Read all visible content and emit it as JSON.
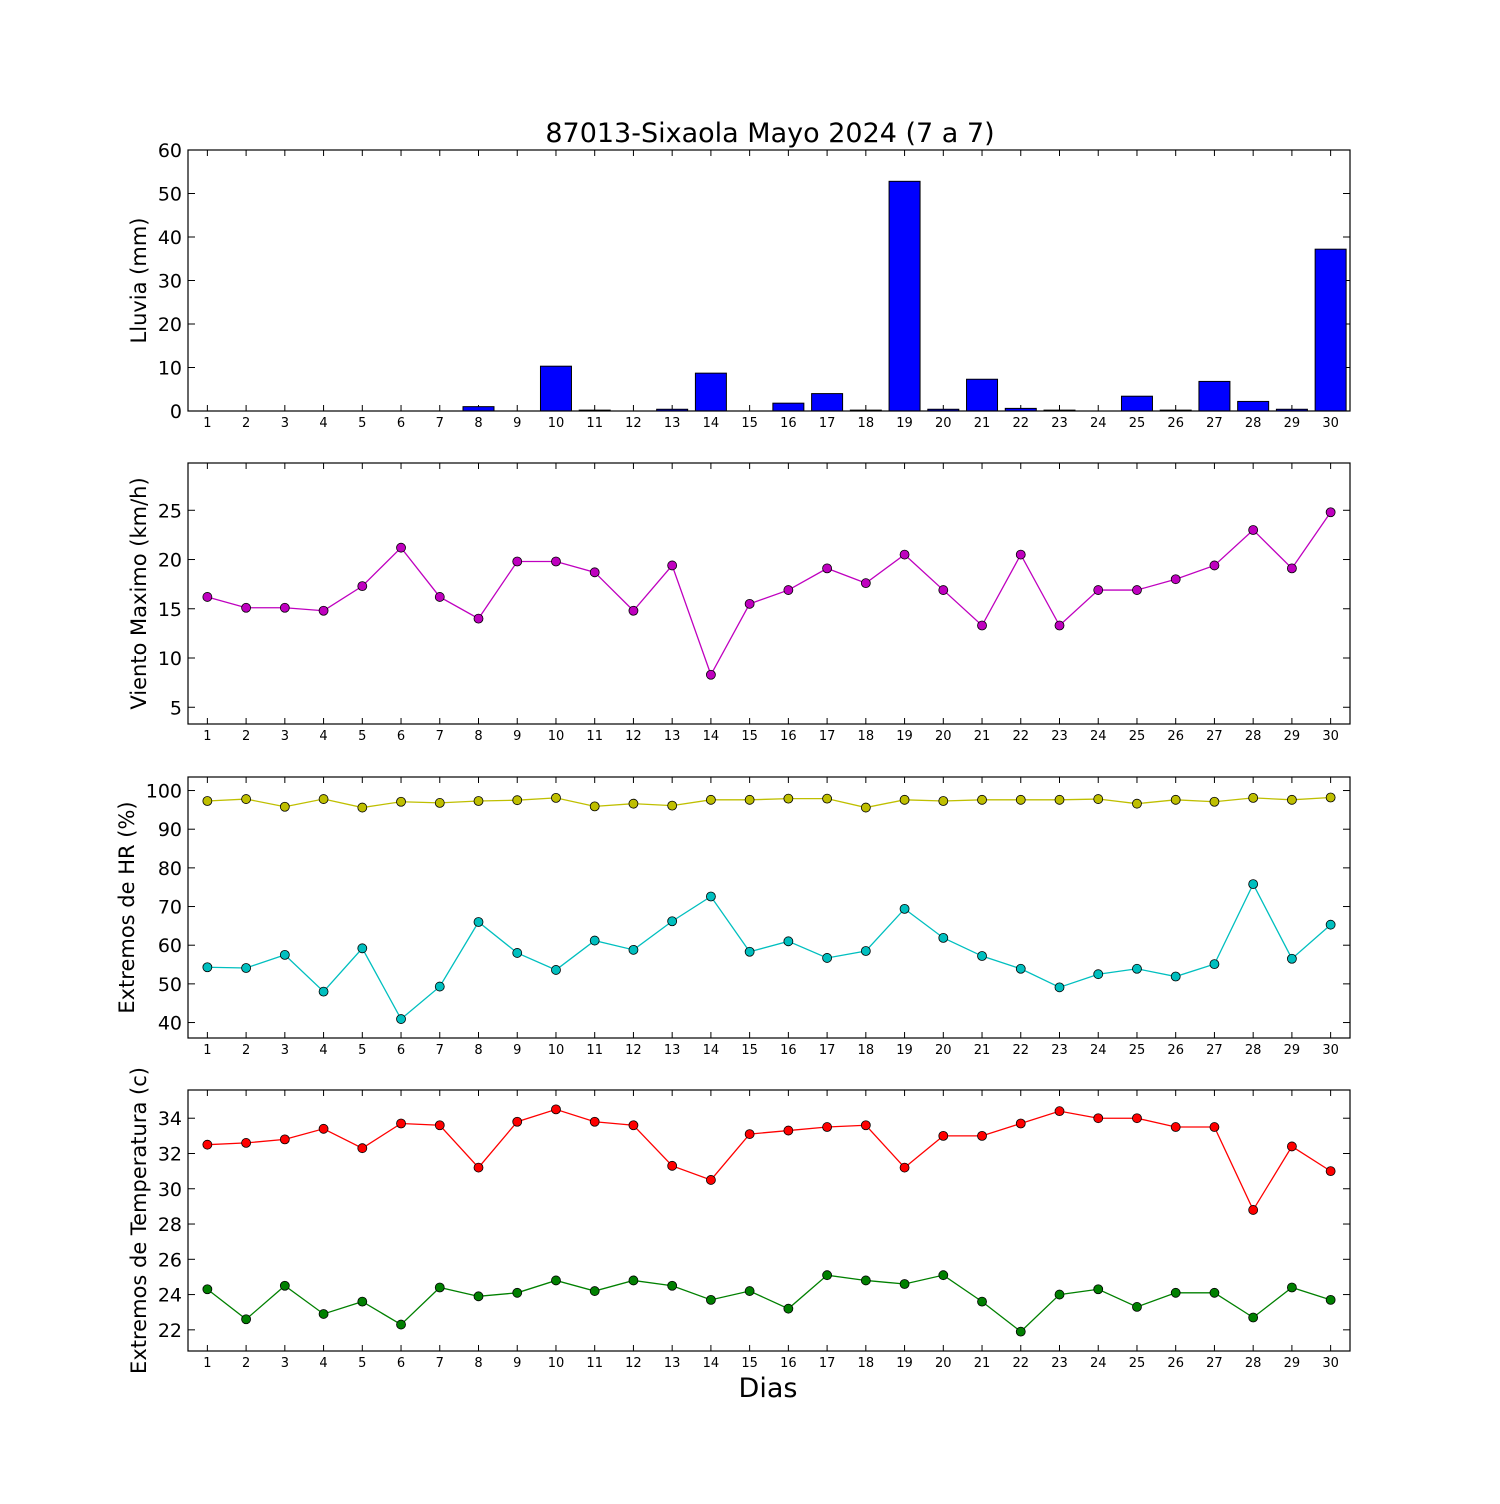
{
  "title": "87013-Sixaola Mayo 2024  (7 a 7)",
  "xlabel": "Dias",
  "chart_data": [
    {
      "type": "bar",
      "id": "lluvia",
      "ylabel": "Lluvia (mm)",
      "ylim": [
        0,
        60
      ],
      "yticks": [
        0,
        10,
        20,
        30,
        40,
        50,
        60
      ],
      "x": [
        1,
        2,
        3,
        4,
        5,
        6,
        7,
        8,
        9,
        10,
        11,
        12,
        13,
        14,
        15,
        16,
        17,
        18,
        19,
        20,
        21,
        22,
        23,
        24,
        25,
        26,
        27,
        28,
        29,
        30
      ],
      "series": [
        {
          "color": "#0000ff",
          "values": [
            0,
            0,
            0,
            0,
            0,
            0,
            0,
            1.0,
            0,
            10.3,
            0.2,
            0,
            0.4,
            8.7,
            0,
            1.8,
            4.0,
            0.2,
            52.8,
            0.4,
            7.3,
            0.6,
            0.2,
            0,
            3.4,
            0.2,
            6.8,
            2.2,
            0.4,
            37.2
          ]
        }
      ]
    },
    {
      "type": "line",
      "id": "viento",
      "ylabel": "Viento Maximo (km/h)",
      "ylim": [
        3.3,
        29.8
      ],
      "yticks": [
        5,
        10,
        15,
        20,
        25
      ],
      "x": [
        1,
        2,
        3,
        4,
        5,
        6,
        7,
        8,
        9,
        10,
        11,
        12,
        13,
        14,
        15,
        16,
        17,
        18,
        19,
        20,
        21,
        22,
        23,
        24,
        25,
        26,
        27,
        28,
        29,
        30
      ],
      "series": [
        {
          "color": "#bf00bf",
          "values": [
            16.2,
            15.1,
            15.1,
            14.8,
            17.3,
            21.2,
            16.2,
            14.0,
            19.8,
            19.8,
            18.7,
            14.8,
            19.4,
            8.3,
            15.5,
            16.9,
            19.1,
            17.6,
            20.5,
            16.9,
            13.3,
            20.5,
            13.3,
            16.9,
            16.9,
            18.0,
            19.4,
            23.0,
            19.1,
            24.8
          ]
        }
      ]
    },
    {
      "type": "line",
      "id": "hr",
      "ylabel": "Extremos de HR (%)",
      "ylim": [
        36,
        103.5
      ],
      "yticks": [
        40,
        50,
        60,
        70,
        80,
        90,
        100
      ],
      "x": [
        1,
        2,
        3,
        4,
        5,
        6,
        7,
        8,
        9,
        10,
        11,
        12,
        13,
        14,
        15,
        16,
        17,
        18,
        19,
        20,
        21,
        22,
        23,
        24,
        25,
        26,
        27,
        28,
        29,
        30
      ],
      "series": [
        {
          "color": "#bfbf00",
          "values": [
            97.3,
            97.8,
            95.8,
            97.8,
            95.6,
            97.1,
            96.8,
            97.3,
            97.5,
            98.1,
            95.9,
            96.6,
            96.1,
            97.6,
            97.6,
            97.9,
            97.9,
            95.6,
            97.6,
            97.3,
            97.6,
            97.6,
            97.6,
            97.8,
            96.6,
            97.6,
            97.1,
            98.1,
            97.6,
            98.2
          ]
        },
        {
          "color": "#00bfbf",
          "values": [
            54.3,
            54.1,
            57.5,
            48.0,
            59.2,
            40.9,
            49.3,
            66.0,
            58.0,
            53.6,
            61.2,
            58.8,
            66.2,
            72.6,
            58.3,
            61.0,
            56.7,
            58.5,
            69.4,
            61.9,
            57.2,
            53.9,
            49.1,
            52.5,
            53.9,
            51.9,
            55.1,
            75.8,
            56.5,
            65.3
          ]
        }
      ]
    },
    {
      "type": "line",
      "id": "temperatura",
      "ylabel": "Extremos de Temperatura (c)",
      "ylim": [
        20.8,
        35.6
      ],
      "yticks": [
        22,
        24,
        26,
        28,
        30,
        32,
        34
      ],
      "x": [
        1,
        2,
        3,
        4,
        5,
        6,
        7,
        8,
        9,
        10,
        11,
        12,
        13,
        14,
        15,
        16,
        17,
        18,
        19,
        20,
        21,
        22,
        23,
        24,
        25,
        26,
        27,
        28,
        29,
        30
      ],
      "series": [
        {
          "color": "#ff0000",
          "values": [
            32.5,
            32.6,
            32.8,
            33.4,
            32.3,
            33.7,
            33.6,
            31.2,
            33.8,
            34.5,
            33.8,
            33.6,
            31.3,
            30.5,
            33.1,
            33.3,
            33.5,
            33.6,
            31.2,
            33.0,
            33.0,
            33.7,
            34.4,
            34.0,
            34.0,
            33.5,
            33.5,
            28.8,
            32.4,
            31.0
          ]
        },
        {
          "color": "#008000",
          "values": [
            24.3,
            22.6,
            24.5,
            22.9,
            23.6,
            22.3,
            24.4,
            23.9,
            24.1,
            24.8,
            24.2,
            24.8,
            24.5,
            23.7,
            24.2,
            23.2,
            25.1,
            24.8,
            24.6,
            25.1,
            23.6,
            21.9,
            24.0,
            24.3,
            23.3,
            24.1,
            24.1,
            22.7,
            24.4,
            23.7
          ]
        }
      ]
    }
  ]
}
